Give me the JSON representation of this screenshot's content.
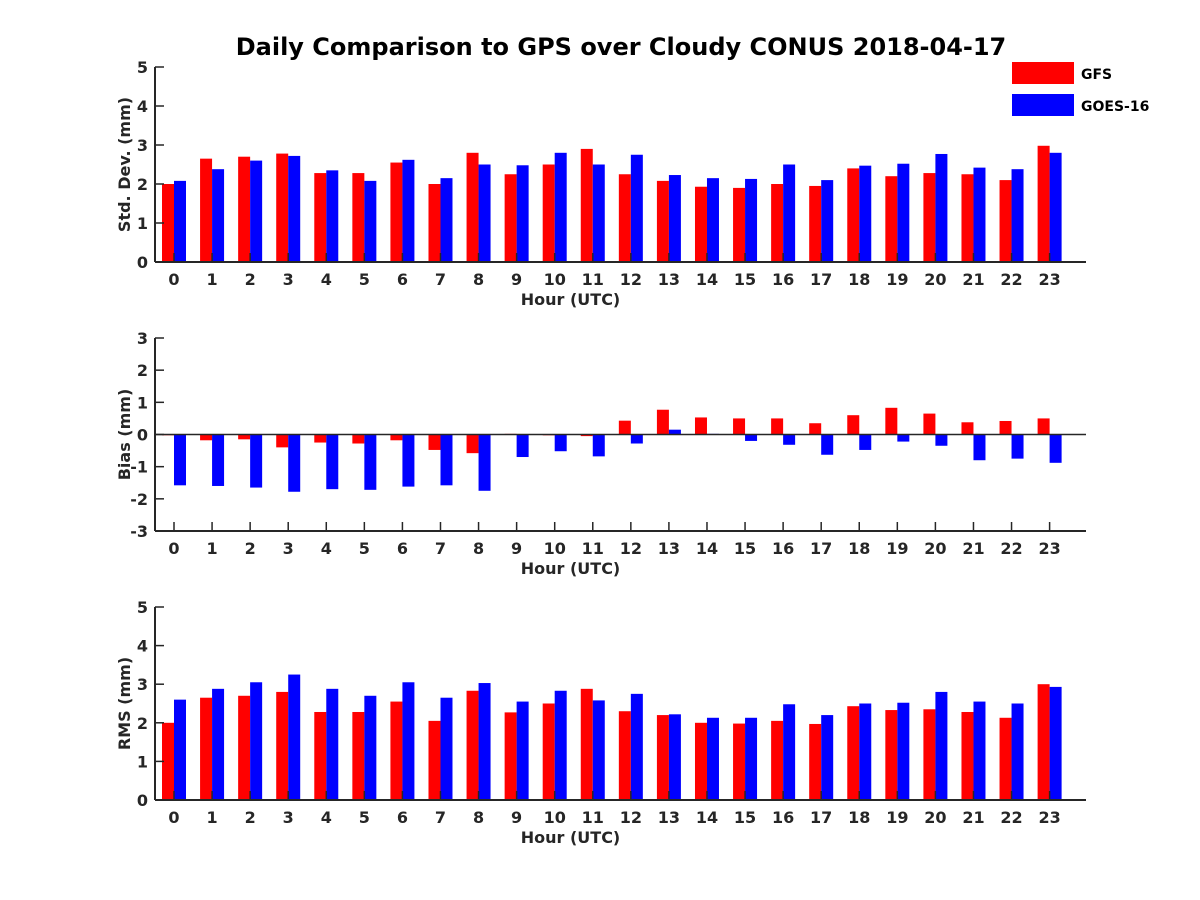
{
  "chart_data": [
    {
      "type": "bar",
      "title": "Daily Comparison to GPS over Cloudy CONUS 2018-04-17",
      "xlabel": "Hour (UTC)",
      "ylabel": "Std. Dev. (mm)",
      "ylim": [
        0,
        5
      ],
      "yticks": [
        "0",
        "1",
        "2",
        "3",
        "4",
        "5"
      ],
      "categories": [
        "0",
        "1",
        "2",
        "3",
        "4",
        "5",
        "6",
        "7",
        "8",
        "9",
        "10",
        "11",
        "12",
        "13",
        "14",
        "15",
        "16",
        "17",
        "18",
        "19",
        "20",
        "21",
        "22",
        "23"
      ],
      "series": [
        {
          "name": "GFS",
          "color": "#ff0000",
          "values": [
            2.0,
            2.65,
            2.7,
            2.78,
            2.28,
            2.28,
            2.55,
            2.0,
            2.8,
            2.25,
            2.5,
            2.9,
            2.25,
            2.08,
            1.93,
            1.9,
            2.0,
            1.95,
            2.4,
            2.2,
            2.28,
            2.25,
            2.1,
            2.98
          ]
        },
        {
          "name": "GOES-16",
          "color": "#0000ff",
          "values": [
            2.08,
            2.38,
            2.6,
            2.72,
            2.35,
            2.08,
            2.62,
            2.15,
            2.5,
            2.48,
            2.8,
            2.5,
            2.75,
            2.23,
            2.15,
            2.13,
            2.5,
            2.1,
            2.47,
            2.52,
            2.77,
            2.42,
            2.38,
            2.8
          ]
        }
      ],
      "legend": "top-right",
      "grid": false
    },
    {
      "type": "bar",
      "xlabel": "Hour (UTC)",
      "ylabel": "Bias (mm)",
      "ylim": [
        -3,
        3
      ],
      "yticks": [
        "-3",
        "-2",
        "-1",
        "0",
        "1",
        "2",
        "3"
      ],
      "categories": [
        "0",
        "1",
        "2",
        "3",
        "4",
        "5",
        "6",
        "7",
        "8",
        "9",
        "10",
        "11",
        "12",
        "13",
        "14",
        "15",
        "16",
        "17",
        "18",
        "19",
        "20",
        "21",
        "22",
        "23"
      ],
      "series": [
        {
          "name": "GFS",
          "color": "#ff0000",
          "values": [
            -0.02,
            -0.18,
            -0.15,
            -0.4,
            -0.25,
            -0.28,
            -0.18,
            -0.48,
            -0.58,
            0.02,
            0.0,
            -0.05,
            0.43,
            0.77,
            0.53,
            0.5,
            0.5,
            0.35,
            0.6,
            0.83,
            0.65,
            0.38,
            0.42,
            0.5
          ]
        },
        {
          "name": "GOES-16",
          "color": "#0000ff",
          "values": [
            -1.58,
            -1.6,
            -1.65,
            -1.78,
            -1.7,
            -1.72,
            -1.62,
            -1.58,
            -1.75,
            -0.7,
            -0.52,
            -0.68,
            -0.28,
            0.15,
            0.02,
            -0.2,
            -0.32,
            -0.63,
            -0.48,
            -0.22,
            -0.35,
            -0.8,
            -0.75,
            -0.88
          ]
        }
      ],
      "grid": false
    },
    {
      "type": "bar",
      "xlabel": "Hour (UTC)",
      "ylabel": "RMS (mm)",
      "ylim": [
        0,
        5
      ],
      "yticks": [
        "0",
        "1",
        "2",
        "3",
        "4",
        "5"
      ],
      "categories": [
        "0",
        "1",
        "2",
        "3",
        "4",
        "5",
        "6",
        "7",
        "8",
        "9",
        "10",
        "11",
        "12",
        "13",
        "14",
        "15",
        "16",
        "17",
        "18",
        "19",
        "20",
        "21",
        "22",
        "23"
      ],
      "series": [
        {
          "name": "GFS",
          "color": "#ff0000",
          "values": [
            2.0,
            2.65,
            2.7,
            2.8,
            2.28,
            2.28,
            2.55,
            2.05,
            2.83,
            2.27,
            2.5,
            2.88,
            2.3,
            2.2,
            2.0,
            1.98,
            2.05,
            1.97,
            2.43,
            2.33,
            2.35,
            2.28,
            2.13,
            3.0
          ]
        },
        {
          "name": "GOES-16",
          "color": "#0000ff",
          "values": [
            2.6,
            2.88,
            3.05,
            3.25,
            2.88,
            2.7,
            3.05,
            2.65,
            3.03,
            2.55,
            2.83,
            2.58,
            2.75,
            2.22,
            2.13,
            2.13,
            2.48,
            2.2,
            2.5,
            2.52,
            2.8,
            2.55,
            2.5,
            2.93
          ]
        }
      ],
      "grid": false
    }
  ]
}
